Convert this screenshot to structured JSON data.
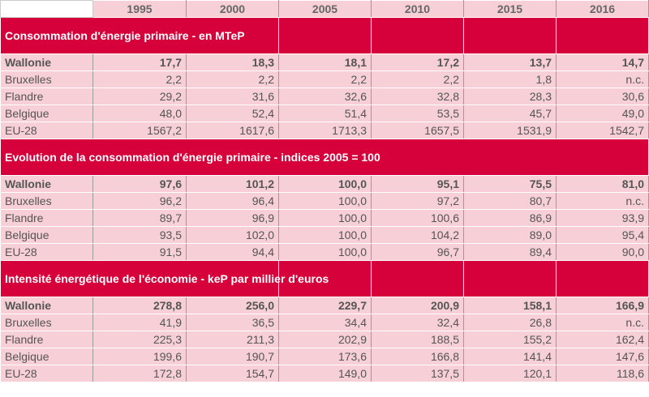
{
  "header": {
    "years": [
      "1995",
      "2000",
      "2005",
      "2010",
      "2015",
      "2016"
    ]
  },
  "sections": [
    {
      "title": "Consommation d'énergie primaire - en MTeP",
      "rows": [
        {
          "label": "Wallonie",
          "values": [
            "17,7",
            "18,3",
            "18,1",
            "17,2",
            "13,7",
            "14,7"
          ]
        },
        {
          "label": "Bruxelles",
          "values": [
            "2,2",
            "2,2",
            "2,2",
            "2,2",
            "1,8",
            "n.c."
          ]
        },
        {
          "label": "Flandre",
          "values": [
            "29,2",
            "31,6",
            "32,6",
            "32,8",
            "28,3",
            "30,6"
          ]
        },
        {
          "label": "Belgique",
          "values": [
            "48,0",
            "52,4",
            "51,4",
            "53,5",
            "45,7",
            "49,0"
          ]
        },
        {
          "label": "EU-28",
          "values": [
            "1567,2",
            "1617,6",
            "1713,3",
            "1657,5",
            "1531,9",
            "1542,7"
          ]
        }
      ]
    },
    {
      "title": "Evolution de la consommation d'énergie primaire - indices 2005 = 100",
      "rows": [
        {
          "label": "Wallonie",
          "values": [
            "97,6",
            "101,2",
            "100,0",
            "95,1",
            "75,5",
            "81,0"
          ]
        },
        {
          "label": "Bruxelles",
          "values": [
            "96,2",
            "96,4",
            "100,0",
            "97,2",
            "80,7",
            "n.c."
          ]
        },
        {
          "label": "Flandre",
          "values": [
            "89,7",
            "96,9",
            "100,0",
            "100,6",
            "86,9",
            "93,9"
          ]
        },
        {
          "label": "Belgique",
          "values": [
            "93,5",
            "102,0",
            "100,0",
            "104,2",
            "89,0",
            "95,4"
          ]
        },
        {
          "label": "EU-28",
          "values": [
            "91,5",
            "94,4",
            "100,0",
            "96,7",
            "89,4",
            "90,0"
          ]
        }
      ]
    },
    {
      "title": "Intensité énergétique de l'économie - keP par millier d'euros",
      "rows": [
        {
          "label": "Wallonie",
          "values": [
            "278,8",
            "256,0",
            "229,7",
            "200,9",
            "158,1",
            "166,9"
          ]
        },
        {
          "label": "Bruxelles",
          "values": [
            "41,9",
            "36,5",
            "34,4",
            "32,4",
            "26,8",
            "n.c."
          ]
        },
        {
          "label": "Flandre",
          "values": [
            "225,3",
            "211,3",
            "202,9",
            "188,5",
            "155,2",
            "162,4"
          ]
        },
        {
          "label": "Belgique",
          "values": [
            "199,6",
            "190,7",
            "173,6",
            "166,8",
            "141,4",
            "147,6"
          ]
        },
        {
          "label": "EU-28",
          "values": [
            "172,8",
            "154,7",
            "149,0",
            "137,5",
            "120,1",
            "118,6"
          ]
        }
      ]
    }
  ]
}
